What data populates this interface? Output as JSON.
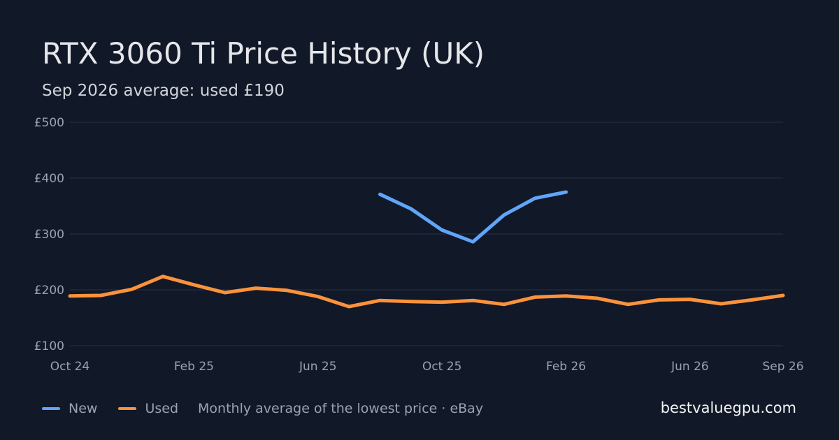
{
  "title": "RTX 3060 Ti Price History (UK)",
  "subtitle": "Sep 2026 average: used £190",
  "brand": "bestvaluegpu.com",
  "legend": {
    "new_label": "New",
    "used_label": "Used",
    "note": "Monthly average of the lowest price · eBay"
  },
  "colors": {
    "background": "#111827",
    "new": "#60a5fa",
    "used": "#fb923c",
    "grid": "#273244",
    "tick_text": "#9ca3af"
  },
  "chart_data": {
    "type": "line",
    "title": "RTX 3060 Ti Price History (UK)",
    "subtitle": "Sep 2026 average: used £190",
    "x": [
      "Oct 24",
      "Nov 24",
      "Dec 24",
      "Jan 25",
      "Feb 25",
      "Mar 25",
      "Apr 25",
      "May 25",
      "Jun 25",
      "Jul 25",
      "Aug 25",
      "Sep 25",
      "Oct 25",
      "Nov 25",
      "Dec 25",
      "Jan 26",
      "Feb 26",
      "Mar 26",
      "Apr 26",
      "May 26",
      "Jun 26",
      "Jul 26",
      "Aug 26",
      "Sep 26"
    ],
    "x_tick_labels": [
      "Oct 24",
      "Feb 25",
      "Jun 25",
      "Oct 25",
      "Feb 26",
      "Jun 26",
      "Sep 26"
    ],
    "series": [
      {
        "name": "New",
        "color": "#60a5fa",
        "values": [
          null,
          null,
          null,
          null,
          null,
          null,
          null,
          null,
          null,
          null,
          371,
          345,
          307,
          286,
          334,
          364,
          375,
          null,
          null,
          null,
          null,
          null,
          null,
          null
        ]
      },
      {
        "name": "Used",
        "color": "#fb923c",
        "values": [
          189,
          190,
          201,
          224,
          209,
          195,
          203,
          199,
          188,
          170,
          181,
          179,
          178,
          181,
          174,
          187,
          189,
          185,
          174,
          182,
          183,
          175,
          182,
          190
        ]
      }
    ],
    "ylim": [
      100,
      500
    ],
    "yticks": [
      100,
      200,
      300,
      400,
      500
    ],
    "ytick_labels": [
      "£100",
      "£200",
      "£300",
      "£400",
      "£500"
    ],
    "grid": true,
    "legend_position": "bottom-left"
  }
}
